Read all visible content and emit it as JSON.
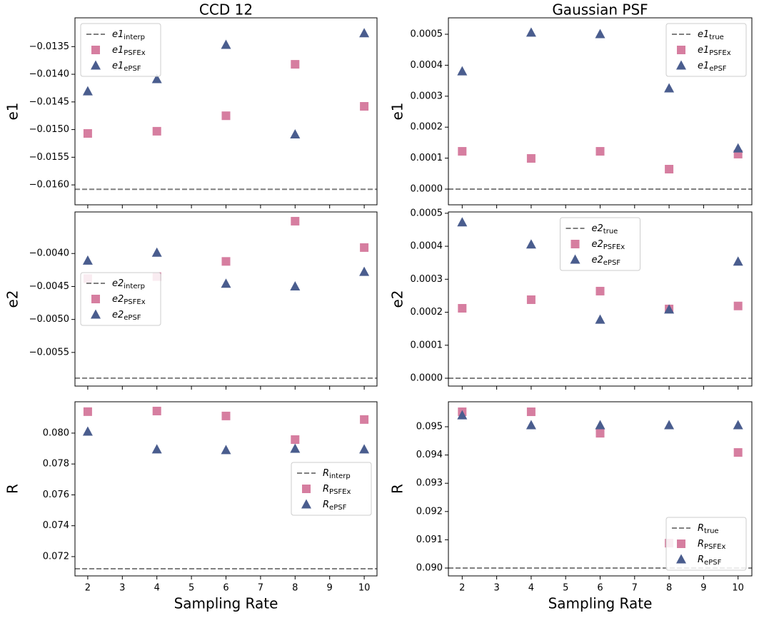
{
  "chart_data": [
    {
      "type": "scatter",
      "title": "CCD 12",
      "ylabel": "e1",
      "legend": "upper left",
      "show_xticklabels": false,
      "x": [
        2,
        4,
        6,
        8,
        10
      ],
      "xlim": [
        1.63,
        10.37
      ],
      "xticks": [
        2,
        3,
        4,
        5,
        6,
        7,
        8,
        9,
        10
      ],
      "ylim": [
        -0.01636,
        -0.01298
      ],
      "yticks": [
        {
          "value": -0.016,
          "label": "−0.0160"
        },
        {
          "value": -0.0155,
          "label": "−0.0155"
        },
        {
          "value": -0.015,
          "label": "−0.0150"
        },
        {
          "value": -0.0145,
          "label": "−0.0145"
        },
        {
          "value": -0.014,
          "label": "−0.0140"
        },
        {
          "value": -0.0135,
          "label": "−0.0135"
        }
      ],
      "reference": {
        "name": "e1",
        "subscript": "interp",
        "value": -0.01608,
        "color": "#808080"
      },
      "series": [
        {
          "name": "e1",
          "subscript": "PSFEx",
          "marker": "square",
          "color": "#d67ea0",
          "values": [
            -0.01507,
            -0.01503,
            -0.01475,
            -0.01382,
            -0.01458
          ]
        },
        {
          "name": "e1",
          "subscript": "ePSF",
          "marker": "triangle",
          "color": "#4a5d8e",
          "values": [
            -0.01431,
            -0.01409,
            -0.01347,
            -0.01509,
            -0.01326
          ]
        }
      ]
    },
    {
      "type": "scatter",
      "title": "Gaussian PSF",
      "ylabel": "e1",
      "legend": "upper right",
      "show_xticklabels": false,
      "x": [
        2,
        4,
        6,
        8,
        10
      ],
      "xlim": [
        1.6,
        10.4
      ],
      "xticks": [
        2,
        3,
        4,
        5,
        6,
        7,
        8,
        9,
        10
      ],
      "ylim": [
        -5.07e-05,
        0.000553
      ],
      "yticks": [
        {
          "value": 0,
          "label": "0.0000"
        },
        0.0001,
        0.0002,
        0.0003,
        0.0004,
        0.0005
      ],
      "reference": {
        "name": "e1",
        "subscript": "true",
        "value": 0,
        "color": "#808080"
      },
      "series": [
        {
          "name": "e1",
          "subscript": "PSFEx",
          "marker": "square",
          "color": "#d67ea0",
          "values": [
            0.000122,
            9.91e-05,
            0.000122,
            6.45e-05,
            0.000113
          ]
        },
        {
          "name": "e1",
          "subscript": "ePSF",
          "marker": "triangle",
          "color": "#4a5d8e",
          "values": [
            0.00038,
            0.000505,
            0.0005,
            0.000325,
            0.000131
          ]
        }
      ]
    },
    {
      "type": "scatter",
      "ylabel": "e2",
      "legend": "center left",
      "show_xticklabels": false,
      "x": [
        2,
        4,
        6,
        8,
        10
      ],
      "xlim": [
        1.63,
        10.37
      ],
      "xticks": [
        2,
        3,
        4,
        5,
        6,
        7,
        8,
        9,
        10
      ],
      "ylim": [
        -0.00601,
        -0.00337
      ],
      "yticks": [
        {
          "value": -0.0055,
          "label": "−0.0055"
        },
        {
          "value": -0.005,
          "label": "−0.0050"
        },
        {
          "value": -0.0045,
          "label": "−0.0045"
        },
        {
          "value": -0.004,
          "label": "−0.0040"
        }
      ],
      "reference": {
        "name": "e2",
        "subscript": "interp",
        "value": -0.00589,
        "color": "#808080"
      },
      "series": [
        {
          "name": "e2",
          "subscript": "PSFEx",
          "marker": "square",
          "color": "#d67ea0",
          "values": [
            -0.00438,
            -0.00435,
            -0.00412,
            -0.00351,
            -0.00391
          ]
        },
        {
          "name": "e2",
          "subscript": "ePSF",
          "marker": "triangle",
          "color": "#4a5d8e",
          "values": [
            -0.00411,
            -0.00399,
            -0.00446,
            -0.0045,
            -0.00428
          ]
        }
      ]
    },
    {
      "type": "scatter",
      "ylabel": "e2",
      "legend": "upper center",
      "show_xticklabels": false,
      "x": [
        2,
        4,
        6,
        8,
        10
      ],
      "xlim": [
        1.6,
        10.4
      ],
      "xticks": [
        2,
        3,
        4,
        5,
        6,
        7,
        8,
        9,
        10
      ],
      "ylim": [
        -2.38e-05,
        0.000504
      ],
      "yticks": [
        {
          "value": 0,
          "label": "0.0000"
        },
        0.0001,
        0.0002,
        0.0003,
        0.0004,
        0.0005
      ],
      "reference": {
        "name": "e2",
        "subscript": "true",
        "value": 0,
        "color": "#808080"
      },
      "series": [
        {
          "name": "e2",
          "subscript": "PSFEx",
          "marker": "square",
          "color": "#d67ea0",
          "values": [
            0.000212,
            0.000238,
            0.000264,
            0.00021,
            0.000219
          ]
        },
        {
          "name": "e2",
          "subscript": "ePSF",
          "marker": "triangle",
          "color": "#4a5d8e",
          "values": [
            0.000472,
            0.000405,
            0.000177,
            0.000208,
            0.000353
          ]
        }
      ]
    },
    {
      "type": "scatter",
      "ylabel": "R",
      "xlabel": "Sampling Rate",
      "legend": "center right",
      "show_xticklabels": true,
      "x": [
        2,
        4,
        6,
        8,
        10
      ],
      "xlim": [
        1.63,
        10.37
      ],
      "xticks": [
        2,
        3,
        4,
        5,
        6,
        7,
        8,
        9,
        10
      ],
      "ylim": [
        0.07075,
        0.08203
      ],
      "yticks": [
        0.072,
        0.074,
        0.076,
        0.078,
        {
          "value": 0.08,
          "label": "0.080"
        }
      ],
      "reference": {
        "name": "R",
        "subscript": "interp",
        "value": 0.07121,
        "color": "#808080"
      },
      "series": [
        {
          "name": "R",
          "subscript": "PSFEx",
          "marker": "square",
          "color": "#d67ea0",
          "values": [
            0.08139,
            0.08143,
            0.08111,
            0.07958,
            0.08088
          ]
        },
        {
          "name": "R",
          "subscript": "ePSF",
          "marker": "triangle",
          "color": "#4a5d8e",
          "values": [
            0.08009,
            0.07894,
            0.07889,
            0.07898,
            0.07894
          ]
        }
      ]
    },
    {
      "type": "scatter",
      "ylabel": "R",
      "xlabel": "Sampling Rate",
      "legend": "lower right",
      "show_xticklabels": true,
      "x": [
        2,
        4,
        6,
        8,
        10
      ],
      "xlim": [
        1.6,
        10.4
      ],
      "xticks": [
        2,
        3,
        4,
        5,
        6,
        7,
        8,
        9,
        10
      ],
      "ylim": [
        0.089722,
        0.095884
      ],
      "yticks": [
        {
          "value": 0.09,
          "label": "0.090"
        },
        0.091,
        0.092,
        0.093,
        0.094,
        0.095
      ],
      "reference": {
        "name": "R",
        "subscript": "true",
        "value": 0.09,
        "color": "#808080"
      },
      "series": [
        {
          "name": "R",
          "subscript": "PSFEx",
          "marker": "square",
          "color": "#d67ea0",
          "values": [
            0.09553,
            0.09553,
            0.09477,
            0.09088,
            0.09409
          ]
        },
        {
          "name": "R",
          "subscript": "ePSF",
          "marker": "triangle",
          "color": "#4a5d8e",
          "values": [
            0.0954,
            0.09505,
            0.09505,
            0.09505,
            0.09505
          ]
        }
      ]
    }
  ]
}
